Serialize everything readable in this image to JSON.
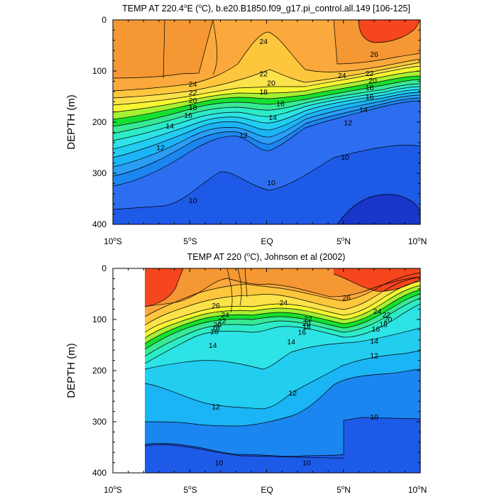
{
  "chart_data": [
    {
      "type": "heatmap",
      "title_prefix": "TEMP AT 220.4",
      "title_sup": "o",
      "title_suffix": "E (",
      "title_unit_sup": "o",
      "title_end": "C), b.e20.B1850.f09_g17.pi_control.all.149 [106-125]",
      "ylabel": "DEPTH (m)",
      "xlim": [
        -10,
        10
      ],
      "ylim": [
        400,
        0
      ],
      "y_ticks": [
        "0",
        "100",
        "200",
        "300",
        "400"
      ],
      "x_ticks": [
        {
          "main": "10",
          "sup": "o",
          "end": "S"
        },
        {
          "main": "5",
          "sup": "o",
          "end": "S"
        },
        {
          "main": "EQ",
          "sup": "",
          "end": ""
        },
        {
          "main": "5",
          "sup": "o",
          "end": "N"
        },
        {
          "main": "10",
          "sup": "o",
          "end": "N"
        }
      ],
      "contour_labels": [
        {
          "text": "24",
          "lat": -0.2,
          "depth": 42
        },
        {
          "text": "26",
          "lat": 7.0,
          "depth": 67
        },
        {
          "text": "22",
          "lat": -0.2,
          "depth": 105
        },
        {
          "text": "20",
          "lat": 0.3,
          "depth": 123
        },
        {
          "text": "18",
          "lat": -0.2,
          "depth": 140
        },
        {
          "text": "16",
          "lat": 0.9,
          "depth": 163
        },
        {
          "text": "14",
          "lat": 0.4,
          "depth": 190
        },
        {
          "text": "12",
          "lat": -1.5,
          "depth": 225
        },
        {
          "text": "10",
          "lat": 0.3,
          "depth": 318
        },
        {
          "text": "24",
          "lat": -4.8,
          "depth": 125
        },
        {
          "text": "22",
          "lat": -4.8,
          "depth": 142
        },
        {
          "text": "20",
          "lat": -4.8,
          "depth": 157
        },
        {
          "text": "18",
          "lat": -4.8,
          "depth": 171
        },
        {
          "text": "16",
          "lat": -5.1,
          "depth": 186
        },
        {
          "text": "14",
          "lat": -6.3,
          "depth": 207
        },
        {
          "text": "12",
          "lat": -6.9,
          "depth": 249
        },
        {
          "text": "10",
          "lat": -4.8,
          "depth": 353
        },
        {
          "text": "24",
          "lat": 4.9,
          "depth": 108
        },
        {
          "text": "22",
          "lat": 6.7,
          "depth": 104
        },
        {
          "text": "20",
          "lat": 6.9,
          "depth": 118
        },
        {
          "text": "18",
          "lat": 6.7,
          "depth": 132
        },
        {
          "text": "16",
          "lat": 6.7,
          "depth": 150
        },
        {
          "text": "14",
          "lat": 6.3,
          "depth": 175
        },
        {
          "text": "12",
          "lat": 5.3,
          "depth": 201
        },
        {
          "text": "10",
          "lat": 5.1,
          "depth": 268
        }
      ]
    },
    {
      "type": "heatmap",
      "title_prefix": "TEMP AT 220 (",
      "title_sup": "o",
      "title_suffix": "C), Johnson et al (2002)",
      "title_unit_sup": "",
      "title_end": "",
      "ylabel": "DEPTH (m)",
      "xlim": [
        -10,
        10
      ],
      "ylim": [
        400,
        0
      ],
      "y_ticks": [
        "0",
        "100",
        "200",
        "300",
        "400"
      ],
      "x_ticks": [
        {
          "main": "10",
          "sup": "o",
          "end": "S"
        },
        {
          "main": "5",
          "sup": "o",
          "end": "S"
        },
        {
          "main": "EQ",
          "sup": "",
          "end": ""
        },
        {
          "main": "5",
          "sup": "o",
          "end": "N"
        },
        {
          "main": "10",
          "sup": "o",
          "end": "N"
        }
      ],
      "contour_labels": [
        {
          "text": "26",
          "lat": 5.2,
          "depth": 57
        },
        {
          "text": "26",
          "lat": -3.3,
          "depth": 72
        },
        {
          "text": "24",
          "lat": -2.7,
          "depth": 90
        },
        {
          "text": "22",
          "lat": -2.9,
          "depth": 102
        },
        {
          "text": "20",
          "lat": -3.2,
          "depth": 110
        },
        {
          "text": "18",
          "lat": -3.3,
          "depth": 116
        },
        {
          "text": "16",
          "lat": -3.4,
          "depth": 123
        },
        {
          "text": "14",
          "lat": -3.5,
          "depth": 150
        },
        {
          "text": "24",
          "lat": 1.1,
          "depth": 67
        },
        {
          "text": "22",
          "lat": 2.7,
          "depth": 98
        },
        {
          "text": "20",
          "lat": 2.6,
          "depth": 107
        },
        {
          "text": "18",
          "lat": 2.6,
          "depth": 114
        },
        {
          "text": "16",
          "lat": 2.3,
          "depth": 124
        },
        {
          "text": "14",
          "lat": 1.6,
          "depth": 143
        },
        {
          "text": "24",
          "lat": 7.2,
          "depth": 83
        },
        {
          "text": "22",
          "lat": 7.8,
          "depth": 90
        },
        {
          "text": "20",
          "lat": 7.9,
          "depth": 99
        },
        {
          "text": "18",
          "lat": 7.6,
          "depth": 109
        },
        {
          "text": "16",
          "lat": 7.1,
          "depth": 118
        },
        {
          "text": "14",
          "lat": 7.0,
          "depth": 142
        },
        {
          "text": "12",
          "lat": 7.0,
          "depth": 170
        },
        {
          "text": "12",
          "lat": 1.7,
          "depth": 243
        },
        {
          "text": "12",
          "lat": -3.3,
          "depth": 270
        },
        {
          "text": "10",
          "lat": 7.0,
          "depth": 290
        },
        {
          "text": "10",
          "lat": -3.1,
          "depth": 380
        },
        {
          "text": "10",
          "lat": 2.6,
          "depth": 380
        }
      ]
    }
  ]
}
